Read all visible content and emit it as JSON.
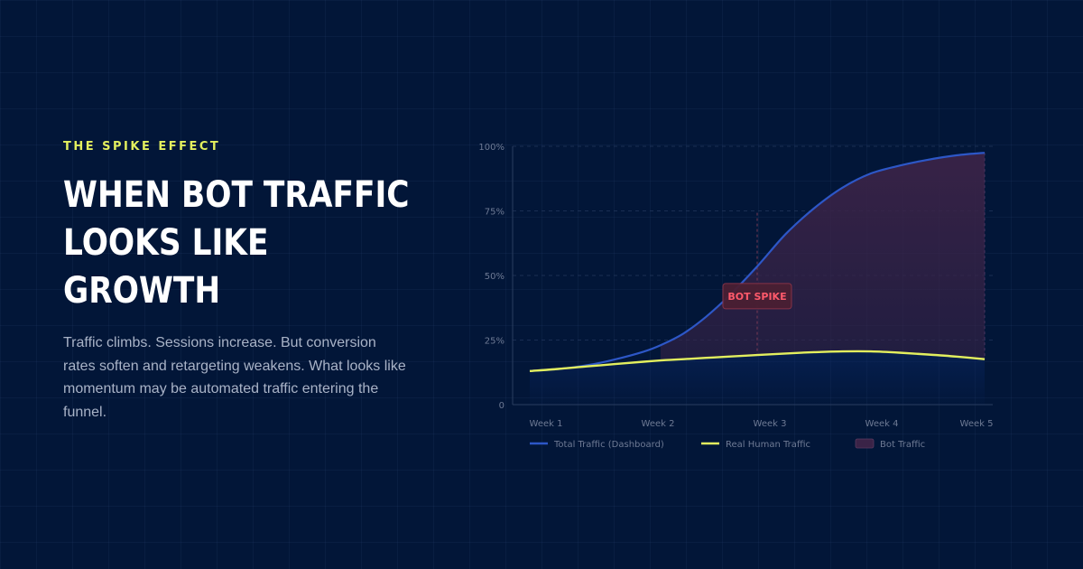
{
  "eyebrow": "THE SPIKE EFFECT",
  "headline": {
    "line1": "WHEN BOT TRAFFIC",
    "line2": "LOOKS LIKE",
    "line3": "GROWTH"
  },
  "body": "Traffic climbs. Sessions increase. But conversion rates soften and retargeting weakens. What looks like momentum may be automated traffic entering the funnel.",
  "colors": {
    "background": "#021638",
    "accent": "#e3ef5e",
    "total_line": "#2d57c7",
    "human_line": "#e3ef5e",
    "bot_fill": "#3a2347",
    "annotation": "#ff5a6b"
  },
  "chart_data": {
    "type": "area",
    "title": "",
    "xlabel": "",
    "ylabel": "",
    "ylim": [
      0,
      100
    ],
    "x_ticks": [
      "Week 1",
      "Week 2",
      "Week 3",
      "Week 4",
      "Week 5"
    ],
    "y_ticks": [
      "0",
      "25%",
      "50%",
      "75%",
      "100%"
    ],
    "y_tick_values": [
      0,
      25,
      50,
      75,
      100
    ],
    "x": [
      1,
      1.25,
      1.5,
      1.75,
      2,
      2.15,
      2.35,
      2.55,
      2.75,
      3,
      3.25,
      3.5,
      3.75,
      4,
      4.25,
      4.5,
      4.75,
      5
    ],
    "series": [
      {
        "name": "Total Traffic (Dashboard)",
        "values": [
          13,
          13.8,
          15.2,
          17.5,
          20.5,
          23,
          27.5,
          34,
          42,
          53.5,
          66,
          76,
          84,
          89.5,
          92.5,
          94.8,
          96.5,
          97.5
        ]
      },
      {
        "name": "Real Human Traffic",
        "values": [
          13,
          13.8,
          14.8,
          15.7,
          16.6,
          17.1,
          17.6,
          18.1,
          18.6,
          19.2,
          19.8,
          20.3,
          20.6,
          20.6,
          20.1,
          19.4,
          18.6,
          17.6
        ]
      }
    ],
    "shaded_region": {
      "name": "Bot Traffic",
      "x_start": 2.15,
      "x_end": 5
    },
    "annotation": {
      "text": "BOT SPIKE",
      "x": 3,
      "y": 42
    },
    "legend": [
      {
        "label": "Total Traffic (Dashboard)",
        "kind": "line",
        "color": "#2d57c7"
      },
      {
        "label": "Real Human Traffic",
        "kind": "line",
        "color": "#e3ef5e"
      },
      {
        "label": "Bot Traffic",
        "kind": "swatch",
        "color": "#3a2347"
      }
    ],
    "grid": true,
    "legend_position": "bottom"
  }
}
